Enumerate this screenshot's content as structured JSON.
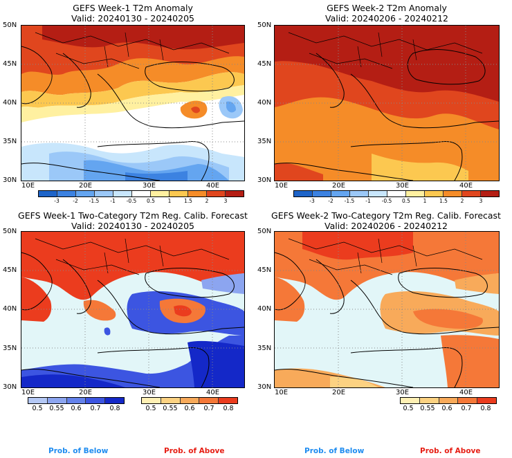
{
  "panels": {
    "tl": {
      "title_line1": "GEFS Week-1 T2m Anomaly",
      "title_line2": "Valid: 20240130 - 20240205"
    },
    "tr": {
      "title_line1": "GEFS Week-2 T2m Anomaly",
      "title_line2": "Valid: 20240206 - 20240212"
    },
    "bl": {
      "title_line1": "GEFS Week-1 Two-Category T2m Reg. Calib. Forecast",
      "title_line2": "Valid: 20240130 - 20240205"
    },
    "br": {
      "title_line1": "GEFS Week-2 Two-Category T2m Reg. Calib. Forecast",
      "title_line2": "Valid: 20240206 - 20240212"
    }
  },
  "lat_labels": [
    "50N",
    "45N",
    "40N",
    "35N",
    "30N"
  ],
  "lon_labels": [
    "10E",
    "20E",
    "30E",
    "40E"
  ],
  "anomaly_colorbar": {
    "ticks": [
      "-3",
      "-2",
      "-1.5",
      "-1",
      "-0.5",
      "0.5",
      "1",
      "1.5",
      "2",
      "3"
    ],
    "colors": [
      "#1e64c8",
      "#3c82e1",
      "#64a5f0",
      "#9bc8f8",
      "#c8e6fc",
      "#ffffff",
      "#fff0a0",
      "#fcc850",
      "#f58c28",
      "#e0461e",
      "#b41e14"
    ]
  },
  "prob_below_colorbar": {
    "ticks": [
      "0.5",
      "0.55",
      "0.6",
      "0.7",
      "0.8"
    ],
    "colors": [
      "#b4c8f5",
      "#8ca5f0",
      "#6482eb",
      "#3c55e1",
      "#1428c8"
    ]
  },
  "prob_above_colorbar": {
    "ticks": [
      "0.5",
      "0.55",
      "0.6",
      "0.7",
      "0.8"
    ],
    "colors": [
      "#fff0b4",
      "#fcd282",
      "#f8aa5a",
      "#f57838",
      "#eb3c1e"
    ]
  },
  "footer": {
    "left_below": "Prob. of Below",
    "left_above": "Prob. of Above",
    "right_below": "Prob. of Below",
    "right_above": "Prob. of Above",
    "below_color": "#1e8cf0",
    "above_color": "#e61e14"
  }
}
